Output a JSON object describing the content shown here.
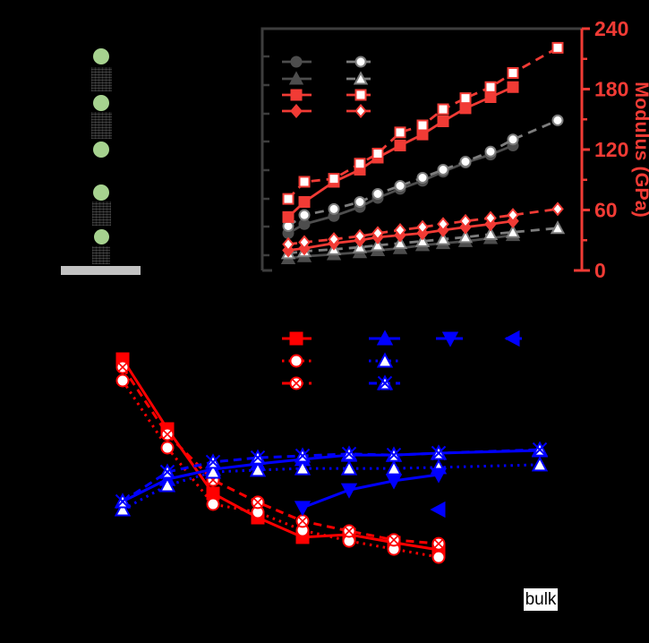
{
  "page": {
    "background": "#000000"
  },
  "figure": {
    "panel_diagram": {
      "name": "layered-pillar-schematic",
      "sphere_color": "#a6d28f",
      "sphere_count": 5,
      "block_color": "#101010",
      "block_count": 4,
      "substrate_color": "#c2c2c2"
    },
    "annotation_bulk": "bulk"
  },
  "chart_data": [
    {
      "id": "top-chart",
      "type": "line",
      "title": "",
      "ylabel_right": "Modulus (GPa)",
      "ylim": [
        0,
        240
      ],
      "y_ticks_right": [
        0,
        60,
        120,
        180,
        240
      ],
      "y_minor_ticks_right": [
        30,
        90,
        150,
        210
      ],
      "axis_colors": {
        "left_top": "#3d3d3d",
        "right": "#f13b35"
      },
      "x": [
        1,
        2,
        3,
        4,
        5,
        6,
        7,
        8,
        9,
        10,
        11,
        12
      ],
      "series": [
        {
          "name": "gray-filled-circle-solid",
          "marker": "circle",
          "fill": "solid",
          "line": "solid",
          "color": "#4d4d4d",
          "values": [
            37,
            46,
            54,
            63,
            72,
            81,
            89,
            98,
            107,
            115,
            124
          ]
        },
        {
          "name": "gray-open-circle-dashed",
          "marker": "circle",
          "fill": "open",
          "line": "dashed",
          "color": "#7d7d7d",
          "values": [
            44,
            55,
            61,
            68,
            76,
            84,
            92,
            100,
            108,
            118,
            130,
            149
          ]
        },
        {
          "name": "gray-filled-triangle-solid",
          "marker": "triangle-up",
          "fill": "solid",
          "line": "solid",
          "color": "#4d4d4d",
          "values": [
            12,
            14,
            16,
            18,
            20,
            22,
            25,
            27,
            29,
            32,
            35
          ]
        },
        {
          "name": "gray-open-triangle-dashed",
          "marker": "triangle-up",
          "fill": "open",
          "line": "dashed",
          "color": "#7d7d7d",
          "values": [
            17,
            19,
            21,
            23,
            25,
            27,
            29,
            31,
            33,
            36,
            38,
            42
          ]
        },
        {
          "name": "red-filled-square-solid",
          "marker": "square",
          "fill": "solid",
          "line": "solid",
          "color": "#f13b35",
          "values": [
            53,
            68,
            88,
            100,
            112,
            124,
            135,
            148,
            161,
            172,
            182
          ]
        },
        {
          "name": "red-open-square-dashed",
          "marker": "square",
          "fill": "open",
          "line": "dashed",
          "color": "#f13b35",
          "values": [
            71,
            88,
            91,
            106,
            116,
            137,
            144,
            160,
            171,
            182,
            196,
            221
          ]
        },
        {
          "name": "red-filled-diamond-solid",
          "marker": "diamond",
          "fill": "solid",
          "line": "solid",
          "color": "#f13b35",
          "values": [
            20,
            22,
            27,
            30,
            33,
            35,
            37,
            40,
            43,
            46,
            49
          ]
        },
        {
          "name": "red-open-diamond-dashed",
          "marker": "diamond",
          "fill": "open",
          "line": "dashed",
          "color": "#f13b35",
          "values": [
            26,
            28,
            31,
            34,
            37,
            40,
            43,
            46,
            49,
            52,
            55,
            61
          ]
        }
      ],
      "legend": {
        "position": "top-left",
        "columns": [
          [
            0,
            2,
            4,
            6
          ],
          [
            1,
            3,
            5,
            7
          ]
        ]
      }
    },
    {
      "id": "bottom-chart",
      "type": "line",
      "title": "",
      "ylim": [
        0,
        1
      ],
      "x": [
        1,
        2,
        3,
        4,
        5,
        6,
        7,
        8,
        9
      ],
      "x_annotation": {
        "label": "bulk",
        "x_index": 8
      },
      "series": [
        {
          "name": "red-filled-square-solid",
          "marker": "square",
          "fill": "solid",
          "line": "solid",
          "color": "#ff0000",
          "x_offset": 0,
          "values": [
            0.83,
            0.57,
            0.33,
            0.24,
            0.167,
            0.177,
            0.147,
            0.12
          ]
        },
        {
          "name": "red-open-circle-dotted",
          "marker": "circle",
          "fill": "open",
          "line": "dotted",
          "color": "#ff0000",
          "x_offset": 0,
          "values": [
            0.75,
            0.5,
            0.29,
            0.26,
            0.193,
            0.153,
            0.123,
            0.093
          ]
        },
        {
          "name": "red-crossed-circle-dashed",
          "marker": "circle-x",
          "fill": "open",
          "line": "dashed",
          "color": "#ff0000",
          "x_offset": 0,
          "values": [
            0.8,
            0.55,
            0.38,
            0.297,
            0.227,
            0.19,
            0.157,
            0.143
          ]
        },
        {
          "name": "blue-filled-triangle-solid",
          "marker": "triangle-up",
          "fill": "solid",
          "line": "solid",
          "color": "#0000ff",
          "x_offset": 0,
          "values": [
            0.3,
            0.383,
            0.42,
            0.44,
            0.457,
            0.473,
            0.473,
            0.48,
            0.49
          ]
        },
        {
          "name": "blue-open-triangle-dotted",
          "marker": "triangle-up",
          "fill": "open",
          "line": "dotted",
          "color": "#0000ff",
          "x_offset": 0,
          "values": [
            0.27,
            0.36,
            0.41,
            0.417,
            0.423,
            0.423,
            0.423,
            0.427,
            0.437
          ]
        },
        {
          "name": "blue-crossed-triangle-dashed",
          "marker": "triangle-x",
          "fill": "open",
          "line": "dashed",
          "color": "#0000ff",
          "x_offset": 0,
          "values": [
            0.3,
            0.41,
            0.447,
            0.463,
            0.47,
            0.477,
            0.473,
            0.48,
            0.493
          ]
        },
        {
          "name": "blue-filled-down-triangle-solid",
          "marker": "triangle-down",
          "fill": "solid",
          "line": "solid",
          "color": "#0000ff",
          "x_offset": 4,
          "values": [
            0.277,
            0.343,
            0.377,
            0.4
          ]
        },
        {
          "name": "blue-filled-left-triangle",
          "marker": "triangle-left",
          "fill": "solid",
          "line": "none",
          "color": "#0000ff",
          "x_offset": 7,
          "values": [
            0.27
          ]
        }
      ],
      "legend": {
        "position": "top-center",
        "columns": [
          [
            0,
            1,
            2
          ],
          [
            3,
            4,
            5
          ],
          [
            6
          ],
          [
            7
          ]
        ]
      }
    }
  ]
}
